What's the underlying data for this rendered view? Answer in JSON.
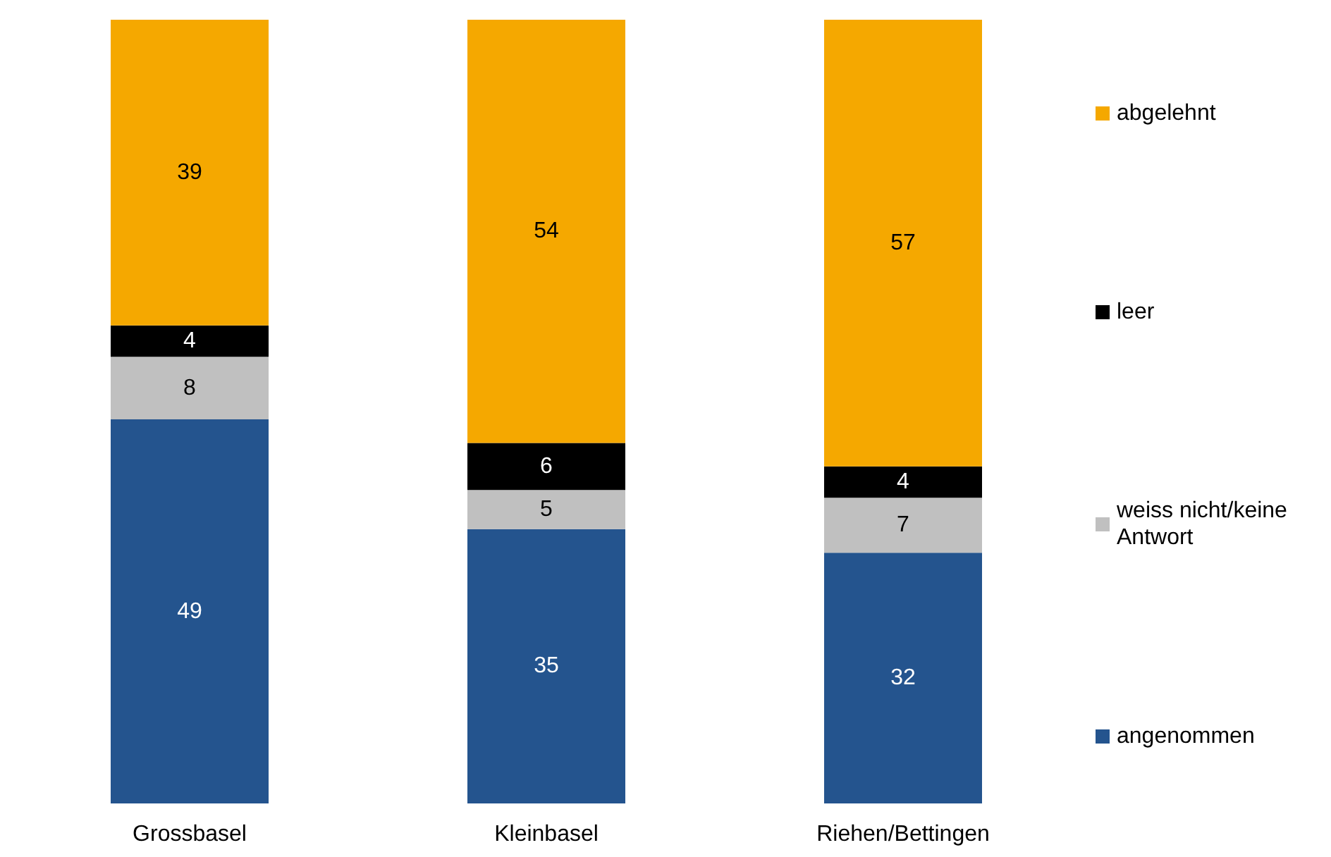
{
  "chart_data": {
    "type": "bar",
    "stacked": true,
    "data_labels": true,
    "legend": "right",
    "categories": [
      "Grossbasel",
      "Kleinbasel",
      "Riehen/Bettingen"
    ],
    "series": [
      {
        "name": "angenommen",
        "color": "#24548e",
        "values": [
          49,
          35,
          32
        ]
      },
      {
        "name": "weiss nicht/keine Antwort",
        "color": "#c0c0c0",
        "values": [
          8,
          5,
          7
        ]
      },
      {
        "name": "leer",
        "color": "#000000",
        "values": [
          4,
          6,
          4
        ]
      },
      {
        "name": "abgelehnt",
        "color": "#f5a800",
        "values": [
          39,
          54,
          57
        ]
      }
    ]
  }
}
